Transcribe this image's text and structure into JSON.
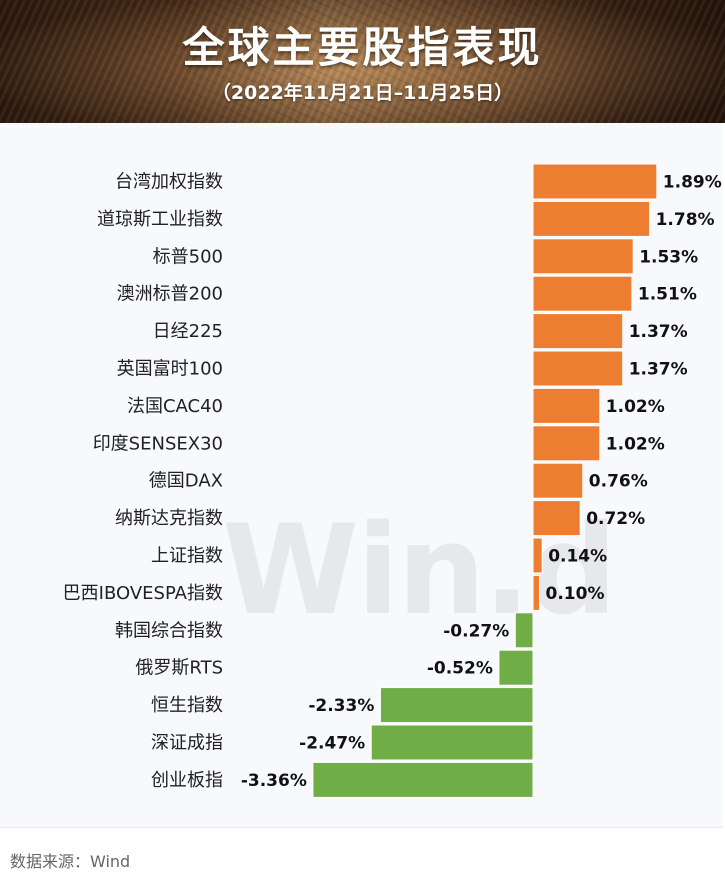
{
  "header": {
    "title": "全球主要股指表现",
    "subtitle": "（2022年11月21日–11月25日）"
  },
  "watermark": "Win.d",
  "source": "数据来源：Wind",
  "colors": {
    "positive": "#ed7d31",
    "negative": "#70ad47"
  },
  "chart_data": {
    "type": "bar",
    "orientation": "horizontal",
    "categories": [
      "台湾加权指数",
      "道琼斯工业指数",
      "标普500",
      "澳洲标普200",
      "日经225",
      "英国富时100",
      "法国CAC40",
      "印度SENSEX30",
      "德国DAX",
      "纳斯达克指数",
      "上证指数",
      "巴西IBOVESPA指数",
      "韩国综合指数",
      "俄罗斯RTS",
      "恒生指数",
      "深证成指",
      "创业板指"
    ],
    "values": [
      1.89,
      1.78,
      1.53,
      1.51,
      1.37,
      1.37,
      1.02,
      1.02,
      0.76,
      0.72,
      0.14,
      0.1,
      -0.27,
      -0.52,
      -2.33,
      -2.47,
      -3.36
    ],
    "labels": [
      "1.89%",
      "1.78%",
      "1.53%",
      "1.51%",
      "1.37%",
      "1.37%",
      "1.02%",
      "1.02%",
      "0.76%",
      "0.72%",
      "0.14%",
      "0.10%",
      "-0.27%",
      "-0.52%",
      "-2.33%",
      "-2.47%",
      "-3.36%"
    ],
    "unit": "%",
    "grid": false
  }
}
